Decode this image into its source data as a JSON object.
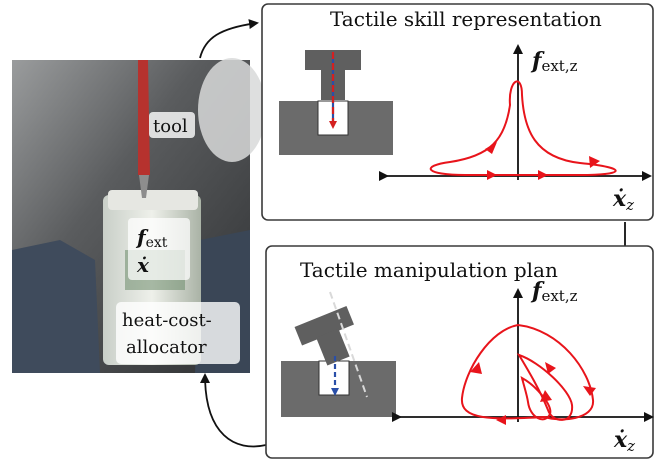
{
  "photo": {
    "tool_label": "tool",
    "force_label": "f",
    "force_sub": "ext",
    "velocity_label": "ẋ",
    "device_label_line1": "heat-cost-",
    "device_label_line2": "allocator"
  },
  "panel_top": {
    "title": "Tactile skill representation",
    "y_axis_label": "f",
    "y_axis_sub": "ext,z",
    "x_axis_label": "ẋ",
    "x_axis_sub": "z"
  },
  "panel_bottom": {
    "title": "Tactile manipulation plan",
    "y_axis_label": "f",
    "y_axis_sub": "ext,z",
    "x_axis_label": "ẋ",
    "x_axis_sub": "z"
  },
  "colors": {
    "trajectory": "#e8141b",
    "insertion_red": "#d42020",
    "insertion_blue": "#2a4fa8",
    "part_dark": "#5f5f5f",
    "block_mid": "#6b6b6b",
    "panel_border": "#3a3a3a",
    "photo_bg": "#5b5d5e",
    "tool_red": "#b6322e"
  }
}
